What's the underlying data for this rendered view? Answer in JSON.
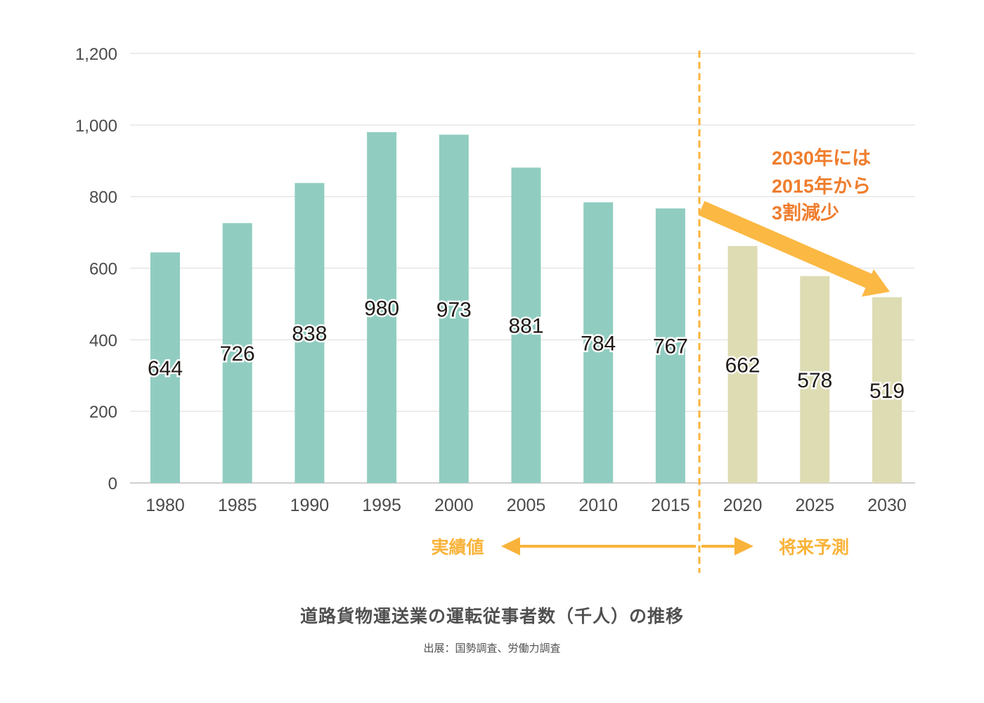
{
  "chart_data": {
    "type": "bar",
    "title": "道路貨物運送業の運転従事者数（千人）の推移",
    "source": "出展：国勢調査、労働力調査",
    "categories": [
      "1980",
      "1985",
      "1990",
      "1995",
      "2000",
      "2005",
      "2010",
      "2015",
      "2020",
      "2025",
      "2030"
    ],
    "values": [
      644,
      726,
      838,
      980,
      973,
      881,
      784,
      767,
      662,
      578,
      519
    ],
    "value_labels": [
      "644",
      "726",
      "838",
      "980",
      "973",
      "881",
      "784",
      "767",
      "662",
      "578",
      "519"
    ],
    "ylim": [
      0,
      1200
    ],
    "yticks": [
      0,
      200,
      400,
      600,
      800,
      1000,
      1200
    ],
    "ytick_labels": [
      "0",
      "200",
      "400",
      "600",
      "800",
      "1,000",
      "1,200"
    ],
    "grid": true,
    "actual_color": "#90cdc0",
    "forecast_color": "#dedcb3",
    "actual_count": 8,
    "phase_labels": {
      "actual": "実績値",
      "forecast": "将来予測"
    },
    "annotation": {
      "lines": [
        "2030年には",
        "2015年から",
        "3割減少"
      ],
      "color": "#ef7d2d"
    },
    "divider_color": "#f9b33a",
    "trend_arrow_color": "#fbb843"
  }
}
